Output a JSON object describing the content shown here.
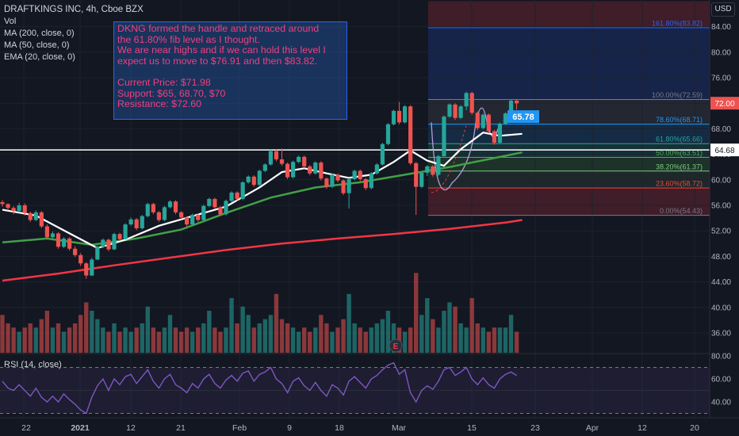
{
  "legend": {
    "symbol": "DRAFTKINGS INC, 4h, Cboe BZX",
    "vol": "Vol",
    "ma200": "MA (200, close, 0)",
    "ma50": "MA (50, close, 0)",
    "ema20": "EMA (20, close, 0)"
  },
  "currency": "USD",
  "note": {
    "line1": "DKNG formed the handle and retraced around",
    "line2": "the 61.80% fib level as I thought.",
    "line3": "We are near highs and if we can hold this level I",
    "line4": "expect us to move to $76.91 and then $83.82.",
    "line5": "Current Price: $71.98",
    "line6": "Support: $65, 68.70, $70",
    "line7": "Resistance: $72.60"
  },
  "colors": {
    "background": "#131722",
    "up": "#26a69a",
    "down": "#ef5350",
    "ma200": "#f23645",
    "ma50": "#43a047",
    "ema20": "#ffffff",
    "rsi": "#7e57c2"
  },
  "chart_data": {
    "type": "candlestick",
    "title": "DRAFTKINGS INC, 4h, Cboe BZX",
    "x_ticks": [
      "22",
      "2021",
      "12",
      "21",
      "Feb",
      "9",
      "18",
      "Mar",
      "15",
      "23",
      "Apr",
      "12",
      "20"
    ],
    "y_ticks": [
      "84.00",
      "80.00",
      "76.00",
      "72.00",
      "68.00",
      "64.00",
      "60.00",
      "56.00",
      "52.00",
      "48.00",
      "44.00",
      "40.00",
      "36.00"
    ],
    "ylim": [
      34,
      88
    ],
    "price_labels": {
      "last": "72.00",
      "line": "64.68"
    },
    "horizontal_line": 64.68,
    "fib_levels": [
      {
        "label": "161.80%(83.82)",
        "value": 83.82,
        "color": "#2962ff"
      },
      {
        "label": "100.00%(72.59)",
        "value": 72.59,
        "color": "#787b86"
      },
      {
        "label": "78.60%(68.71)",
        "value": 68.71,
        "color": "#2196f3"
      },
      {
        "label": "61.80%(65.66)",
        "value": 65.66,
        "color": "#26a69a"
      },
      {
        "label": "50.00%(63.51)",
        "value": 63.51,
        "color": "#4caf50"
      },
      {
        "label": "38.20%(61.37)",
        "value": 61.37,
        "color": "#81c784"
      },
      {
        "label": "23.60%(58.72)",
        "value": 58.72,
        "color": "#f44336"
      },
      {
        "label": "0.00%(54.43)",
        "value": 54.43,
        "color": "#787b86"
      }
    ],
    "callout": "65.78",
    "earnings_marker": "E",
    "series": [
      {
        "name": "Price",
        "type": "candlestick",
        "ohlc": [
          [
            56.5,
            56.8,
            55.8,
            56.2
          ],
          [
            56.2,
            56.3,
            55.2,
            55.6
          ],
          [
            55.6,
            55.9,
            54.6,
            55.1
          ],
          [
            55.1,
            56.4,
            54.9,
            56.0
          ],
          [
            56.0,
            56.3,
            54.4,
            54.8
          ],
          [
            54.8,
            55.0,
            53.4,
            53.7
          ],
          [
            53.7,
            55.2,
            53.5,
            54.9
          ],
          [
            54.9,
            55.1,
            52.4,
            52.7
          ],
          [
            52.7,
            53.0,
            50.7,
            51.0
          ],
          [
            51.0,
            51.9,
            50.8,
            51.6
          ],
          [
            51.6,
            51.8,
            49.2,
            49.5
          ],
          [
            49.5,
            51.0,
            49.3,
            50.8
          ],
          [
            50.8,
            51.0,
            48.9,
            49.2
          ],
          [
            49.2,
            49.6,
            47.9,
            48.2
          ],
          [
            48.2,
            48.5,
            46.5,
            46.9
          ],
          [
            46.9,
            47.1,
            44.5,
            45.0
          ],
          [
            45.0,
            47.8,
            44.9,
            47.5
          ],
          [
            47.5,
            49.7,
            47.4,
            49.5
          ],
          [
            49.5,
            50.8,
            49.3,
            50.6
          ],
          [
            50.6,
            50.8,
            48.8,
            49.1
          ],
          [
            49.1,
            51.7,
            49.0,
            51.5
          ],
          [
            51.5,
            51.7,
            50.4,
            50.7
          ],
          [
            50.7,
            53.2,
            50.6,
            53.0
          ],
          [
            53.0,
            54.1,
            52.8,
            53.8
          ],
          [
            53.8,
            54.0,
            52.1,
            52.4
          ],
          [
            52.4,
            54.5,
            52.2,
            54.3
          ],
          [
            54.3,
            56.4,
            54.1,
            56.2
          ],
          [
            56.2,
            56.4,
            54.6,
            54.9
          ],
          [
            54.9,
            55.1,
            53.4,
            53.7
          ],
          [
            53.7,
            55.9,
            53.5,
            55.7
          ],
          [
            55.7,
            56.8,
            55.5,
            56.6
          ],
          [
            56.6,
            56.8,
            54.6,
            54.9
          ],
          [
            54.9,
            55.1,
            53.8,
            54.1
          ],
          [
            54.1,
            54.3,
            52.7,
            53.0
          ],
          [
            53.0,
            54.7,
            52.8,
            54.5
          ],
          [
            54.5,
            54.7,
            53.4,
            53.7
          ],
          [
            53.7,
            56.1,
            53.5,
            55.9
          ],
          [
            55.9,
            57.2,
            55.7,
            57.0
          ],
          [
            57.0,
            57.2,
            55.4,
            55.7
          ],
          [
            55.7,
            55.9,
            54.3,
            54.6
          ],
          [
            54.6,
            56.9,
            54.4,
            56.7
          ],
          [
            56.7,
            58.2,
            56.5,
            58.0
          ],
          [
            58.0,
            58.2,
            56.7,
            57.0
          ],
          [
            57.0,
            59.8,
            56.8,
            59.6
          ],
          [
            59.6,
            60.7,
            59.4,
            60.5
          ],
          [
            60.5,
            60.7,
            58.9,
            59.2
          ],
          [
            59.2,
            61.6,
            59.0,
            61.4
          ],
          [
            61.4,
            62.6,
            61.2,
            62.4
          ],
          [
            62.4,
            64.7,
            62.2,
            64.5
          ],
          [
            64.5,
            64.7,
            62.9,
            63.2
          ],
          [
            63.2,
            64.9,
            62.2,
            62.5
          ],
          [
            62.5,
            62.7,
            60.1,
            60.4
          ],
          [
            60.4,
            63.0,
            60.2,
            62.8
          ],
          [
            62.8,
            63.8,
            62.6,
            63.6
          ],
          [
            63.6,
            63.8,
            61.8,
            62.1
          ],
          [
            62.1,
            62.3,
            60.7,
            61.0
          ],
          [
            61.0,
            62.9,
            60.8,
            62.7
          ],
          [
            62.7,
            62.9,
            59.9,
            60.2
          ],
          [
            60.2,
            60.4,
            58.6,
            58.9
          ],
          [
            58.9,
            61.0,
            58.7,
            60.8
          ],
          [
            60.8,
            61.0,
            59.6,
            59.9
          ],
          [
            59.9,
            60.1,
            57.6,
            57.9
          ],
          [
            57.9,
            60.3,
            55.5,
            60.1
          ],
          [
            60.1,
            61.6,
            59.9,
            61.4
          ],
          [
            61.4,
            61.6,
            59.8,
            60.1
          ],
          [
            60.1,
            60.3,
            58.4,
            58.7
          ],
          [
            58.7,
            61.2,
            58.5,
            61.0
          ],
          [
            61.0,
            62.6,
            60.8,
            62.4
          ],
          [
            62.4,
            65.8,
            62.2,
            65.6
          ],
          [
            65.6,
            68.9,
            65.4,
            68.7
          ],
          [
            68.7,
            71.0,
            68.5,
            70.8
          ],
          [
            70.8,
            72.2,
            68.7,
            69.0
          ],
          [
            69.0,
            71.7,
            68.8,
            71.5
          ],
          [
            71.5,
            71.7,
            62.3,
            62.6
          ],
          [
            62.6,
            62.8,
            54.5,
            58.9
          ],
          [
            58.9,
            61.3,
            58.7,
            61.1
          ],
          [
            61.1,
            62.3,
            60.6,
            62.1
          ],
          [
            62.1,
            62.3,
            60.5,
            60.8
          ],
          [
            60.8,
            63.9,
            60.6,
            63.7
          ],
          [
            63.7,
            70.1,
            63.5,
            69.9
          ],
          [
            69.9,
            72.0,
            69.7,
            71.8
          ],
          [
            71.8,
            72.0,
            69.4,
            69.7
          ],
          [
            69.7,
            71.7,
            69.5,
            71.5
          ],
          [
            71.5,
            73.8,
            70.9,
            73.6
          ],
          [
            73.6,
            73.8,
            70.2,
            70.5
          ],
          [
            70.5,
            70.7,
            67.8,
            68.1
          ],
          [
            68.1,
            70.4,
            67.9,
            70.2
          ],
          [
            70.2,
            70.4,
            67.3,
            67.6
          ],
          [
            67.6,
            67.8,
            65.5,
            65.8
          ],
          [
            65.8,
            69.0,
            65.6,
            68.8
          ],
          [
            68.8,
            70.6,
            68.6,
            70.4
          ],
          [
            70.4,
            72.6,
            70.2,
            72.4
          ],
          [
            72.4,
            72.6,
            71.0,
            71.98
          ]
        ]
      },
      {
        "name": "MA (200, close, 0)",
        "points": [
          [
            0,
            44.2
          ],
          [
            10,
            45.3
          ],
          [
            20,
            46.6
          ],
          [
            30,
            47.8
          ],
          [
            40,
            49.0
          ],
          [
            50,
            50.0
          ],
          [
            60,
            50.8
          ],
          [
            70,
            51.5
          ],
          [
            80,
            52.3
          ],
          [
            90,
            53.3
          ],
          [
            93,
            53.7
          ]
        ]
      },
      {
        "name": "MA (50, close, 0)",
        "points": [
          [
            0,
            50.2
          ],
          [
            8,
            50.8
          ],
          [
            16,
            49.8
          ],
          [
            24,
            50.8
          ],
          [
            32,
            52.2
          ],
          [
            40,
            54.8
          ],
          [
            48,
            57.2
          ],
          [
            56,
            58.8
          ],
          [
            64,
            59.6
          ],
          [
            72,
            60.8
          ],
          [
            80,
            62.0
          ],
          [
            88,
            63.4
          ],
          [
            93,
            64.3
          ]
        ]
      },
      {
        "name": "EMA (20, close, 0)",
        "points": [
          [
            0,
            55.3
          ],
          [
            6,
            54.4
          ],
          [
            12,
            51.6
          ],
          [
            17,
            49.3
          ],
          [
            22,
            50.6
          ],
          [
            28,
            52.8
          ],
          [
            34,
            54.3
          ],
          [
            40,
            55.8
          ],
          [
            46,
            58.8
          ],
          [
            50,
            61.2
          ],
          [
            54,
            61.8
          ],
          [
            58,
            61.0
          ],
          [
            62,
            60.3
          ],
          [
            66,
            60.8
          ],
          [
            70,
            62.8
          ],
          [
            73,
            64.6
          ],
          [
            76,
            63.0
          ],
          [
            79,
            62.2
          ],
          [
            82,
            64.8
          ],
          [
            86,
            67.4
          ],
          [
            89,
            66.9
          ],
          [
            93,
            67.2
          ]
        ]
      }
    ],
    "volume": [
      9,
      7,
      6,
      5,
      6,
      7,
      6,
      8,
      10,
      6,
      7,
      5,
      6,
      7,
      9,
      12,
      10,
      8,
      6,
      5,
      7,
      5,
      6,
      5,
      6,
      7,
      11,
      6,
      5,
      6,
      9,
      6,
      5,
      6,
      5,
      6,
      7,
      10,
      6,
      5,
      6,
      13,
      7,
      11,
      9,
      6,
      7,
      8,
      9,
      14,
      8,
      7,
      6,
      5,
      6,
      5,
      6,
      9,
      7,
      5,
      6,
      8,
      14,
      7,
      6,
      5,
      6,
      7,
      8,
      10,
      7,
      6,
      5,
      6,
      19,
      9,
      13,
      8,
      6,
      10,
      12,
      11,
      7,
      6,
      13,
      7,
      6,
      5,
      6,
      6,
      6,
      9,
      5
    ],
    "rsi": {
      "label": "RSI (14, close)",
      "y_ticks": [
        "80.00",
        "60.00",
        "40.00"
      ],
      "upper": 70,
      "lower": 30,
      "ylim": [
        25,
        85
      ],
      "values": [
        58,
        52,
        50,
        55,
        50,
        45,
        52,
        44,
        40,
        45,
        40,
        47,
        42,
        38,
        33,
        30,
        44,
        54,
        60,
        50,
        60,
        55,
        62,
        64,
        56,
        62,
        68,
        58,
        52,
        60,
        64,
        55,
        52,
        48,
        56,
        52,
        60,
        64,
        56,
        52,
        59,
        63,
        58,
        65,
        67,
        58,
        64,
        66,
        70,
        60,
        56,
        48,
        58,
        61,
        54,
        50,
        57,
        50,
        45,
        55,
        52,
        46,
        58,
        62,
        57,
        52,
        60,
        63,
        68,
        72,
        74,
        64,
        68,
        48,
        40,
        50,
        54,
        51,
        58,
        68,
        70,
        63,
        66,
        70,
        60,
        55,
        61,
        55,
        52,
        60,
        64,
        66,
        63
      ]
    }
  }
}
